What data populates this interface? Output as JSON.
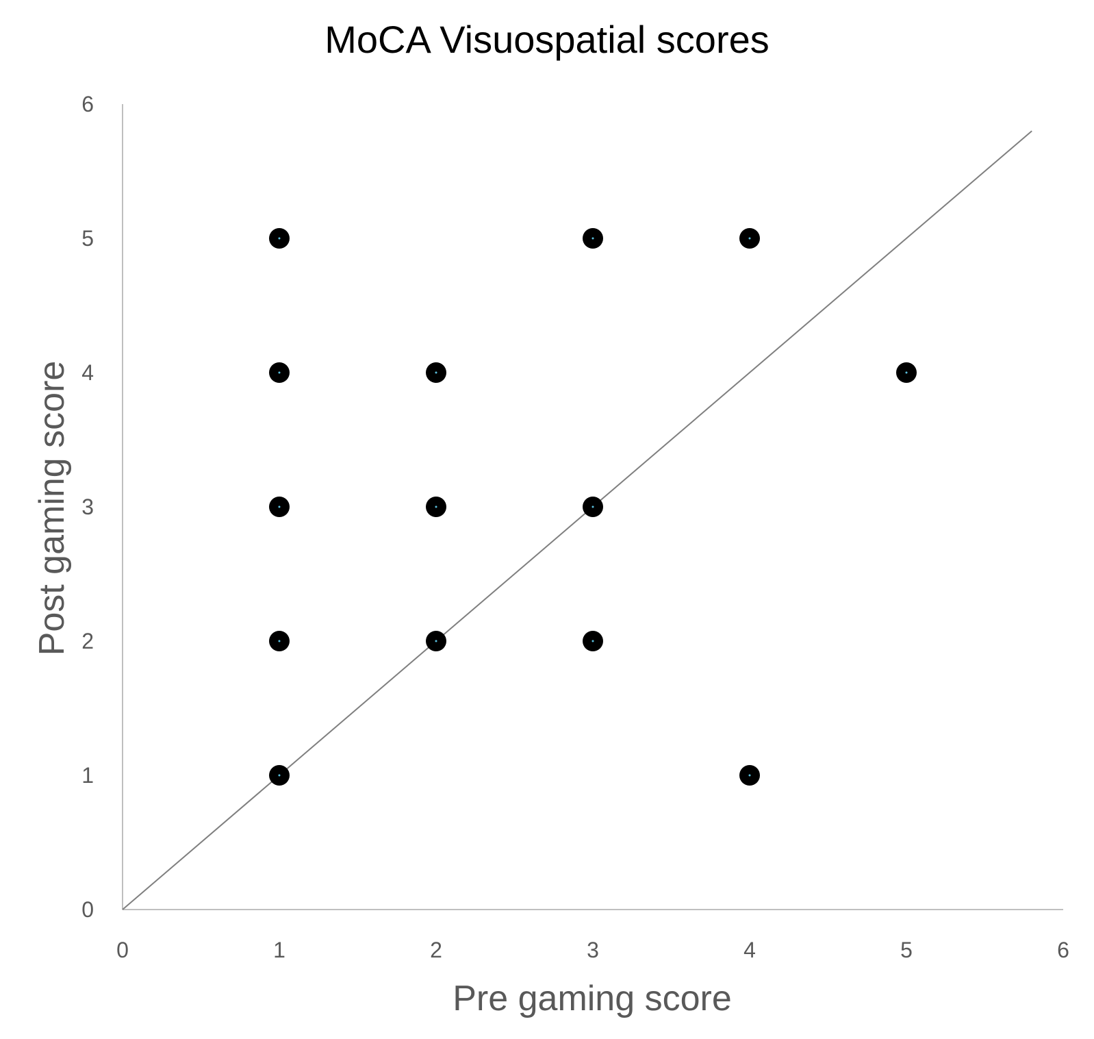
{
  "chart_data": {
    "type": "scatter",
    "title": "MoCA Visuospatial scores",
    "xlabel": "Pre gaming score",
    "ylabel": "Post gaming score",
    "xlim": [
      0,
      6
    ],
    "ylim": [
      0,
      6
    ],
    "x_ticks": [
      "0",
      "1",
      "2",
      "3",
      "4",
      "5",
      "6"
    ],
    "y_ticks": [
      "0",
      "1",
      "2",
      "3",
      "4",
      "5",
      "6"
    ],
    "grid": false,
    "legend": "none",
    "series": [
      {
        "points": [
          {
            "x": 1,
            "y": 5
          },
          {
            "x": 3,
            "y": 5
          },
          {
            "x": 4,
            "y": 5
          },
          {
            "x": 1,
            "y": 4
          },
          {
            "x": 2,
            "y": 4
          },
          {
            "x": 5,
            "y": 4
          },
          {
            "x": 1,
            "y": 3
          },
          {
            "x": 2,
            "y": 3
          },
          {
            "x": 3,
            "y": 3
          },
          {
            "x": 1,
            "y": 2
          },
          {
            "x": 2,
            "y": 2
          },
          {
            "x": 3,
            "y": 2
          },
          {
            "x": 1,
            "y": 1
          },
          {
            "x": 4,
            "y": 1
          }
        ],
        "color": "#000000"
      }
    ],
    "reference_line": {
      "x": [
        0,
        5.8
      ],
      "y": [
        0,
        5.8
      ],
      "color": "#7f7f7f"
    },
    "colors": {
      "axis": "#bfbfbf",
      "text": "#595959",
      "title": "#000000",
      "marker_center": "#5bc0de"
    }
  }
}
